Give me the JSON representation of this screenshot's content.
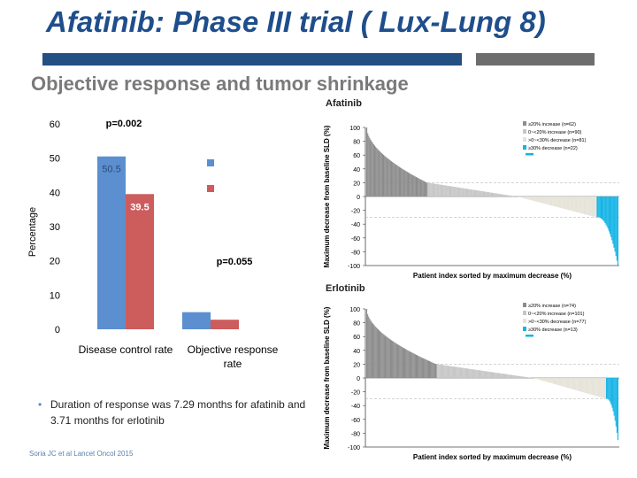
{
  "header": {
    "title": "Afatinib: Phase III trial ( Lux-Lung 8)",
    "subtitle": "Objective response and tumor shrinkage"
  },
  "bullet": {
    "text": "Duration of response was 7.29 months for afatinib and 3.71 months for erlotinib"
  },
  "citation": "Soria JC et al Lancet Oncol 2015",
  "colors": {
    "title": "#1f4e8c",
    "afatinib": "#5b8fcf",
    "erlotinib": "#cd5c5c",
    "waterfall_up": "#8c8c8c",
    "waterfall_mid": "#c6c6c6",
    "waterfall_stable": "#e6e3d8",
    "waterfall_response": "#14b4e6"
  },
  "chart_data": [
    {
      "type": "bar",
      "categories": [
        "Disease control rate",
        "Objective response rate"
      ],
      "series": [
        {
          "values": [
            50.5,
            5
          ],
          "color": "#5b8fcf"
        },
        {
          "values": [
            39.5,
            2.8
          ],
          "color": "#cd5c5c"
        }
      ],
      "data_labels": [
        "50.5",
        "39.5"
      ],
      "annotations": [
        "p=0.002",
        "p=0.055"
      ],
      "ylabel": "Percentage",
      "ylim": [
        0,
        60
      ],
      "yticks": [
        "0",
        "10",
        "20",
        "30",
        "40",
        "50",
        "60"
      ],
      "legend": "right, no text",
      "grid": false
    },
    {
      "type": "bar",
      "title": "Afatinib",
      "ylabel": "Maximum decrease from baseline SLD (%)",
      "xlabel": "Patient index sorted by maximum decrease (%)",
      "ylim": [
        -100,
        100
      ],
      "yticks": [
        "100",
        "80",
        "60",
        "40",
        "20",
        "0",
        "-20",
        "-40",
        "-60",
        "-80",
        "-100"
      ],
      "legend_entries": [
        "≥20% increase (n=62)",
        "0~<20% increase (n=90)",
        ">0~<30% decrease (n=81)",
        "≥30% decrease (n=22)"
      ],
      "groups": [
        {
          "n": 62,
          "start": 100,
          "end": 20
        },
        {
          "n": 90,
          "start": 20,
          "end": 0
        },
        {
          "n": 81,
          "start": 0,
          "end": -30
        },
        {
          "n": 22,
          "start": -30,
          "end": -100
        }
      ],
      "reference_lines": [
        20,
        -30
      ]
    },
    {
      "type": "bar",
      "title": "Erlotinib",
      "ylabel": "Maximum decrease from baseline SLD (%)",
      "xlabel": "Patient index sorted by maximum decrease (%)",
      "ylim": [
        -100,
        100
      ],
      "yticks": [
        "100",
        "80",
        "60",
        "40",
        "20",
        "0",
        "-20",
        "-40",
        "-60",
        "-80",
        "-100"
      ],
      "legend_entries": [
        "≥20% increase (n=74)",
        "0~<20% increase (n=101)",
        ">0~<30% decrease (n=77)",
        "≥30% decrease (n=13)"
      ],
      "groups": [
        {
          "n": 74,
          "start": 100,
          "end": 20
        },
        {
          "n": 101,
          "start": 20,
          "end": 0
        },
        {
          "n": 77,
          "start": 0,
          "end": -30
        },
        {
          "n": 13,
          "start": -30,
          "end": -90
        }
      ],
      "reference_lines": [
        20,
        -30
      ]
    }
  ]
}
